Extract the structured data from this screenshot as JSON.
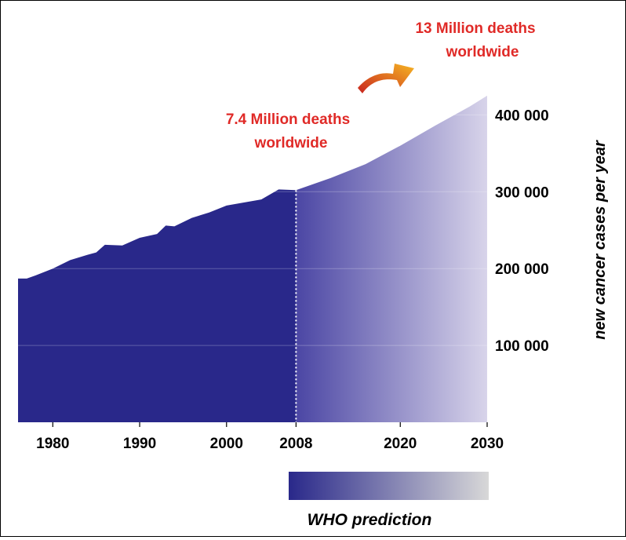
{
  "chart_data": {
    "type": "area",
    "ylabel": "new cancer cases per year",
    "x_ticks": [
      {
        "label": "1980",
        "value": 1980
      },
      {
        "label": "1990",
        "value": 1990
      },
      {
        "label": "2000",
        "value": 2000
      },
      {
        "label": "2008",
        "value": 2008
      },
      {
        "label": "2020",
        "value": 2020
      },
      {
        "label": "2030",
        "value": 2030
      }
    ],
    "y_ticks": [
      {
        "label": "100 000",
        "value": 100000
      },
      {
        "label": "200 000",
        "value": 200000
      },
      {
        "label": "300 000",
        "value": 300000
      },
      {
        "label": "400 000",
        "value": 400000
      }
    ],
    "xlim": [
      1976,
      2030
    ],
    "ylim": [
      0,
      420000
    ],
    "grid": true,
    "historical": {
      "x": [
        1976,
        1977,
        1978,
        1980,
        1982,
        1984,
        1985,
        1986,
        1988,
        1990,
        1992,
        1993,
        1994,
        1996,
        1998,
        2000,
        2002,
        2004,
        2006,
        2008
      ],
      "y": [
        187000,
        187000,
        191000,
        200000,
        211000,
        218000,
        221000,
        231000,
        230000,
        240000,
        245000,
        256000,
        255000,
        266000,
        273000,
        282000,
        286000,
        290000,
        303000,
        302000
      ]
    },
    "prediction": {
      "x": [
        2008,
        2012,
        2016,
        2020,
        2024,
        2028,
        2030
      ],
      "y": [
        302000,
        318000,
        336000,
        360000,
        386000,
        411000,
        425000
      ]
    },
    "prediction_start": 2008,
    "colors": {
      "historical": "#29288a",
      "prediction_start": "#4b46a4",
      "prediction_end": "#d8d4ea",
      "legend_start": "#29288a",
      "legend_end": "#d8d8d8",
      "annotation": "#e02a27",
      "arrow_start": "#c8241e",
      "arrow_end": "#f6b623"
    },
    "annotations": {
      "current": [
        "7.4 Million deaths",
        "worldwide"
      ],
      "future": [
        "13 Million deaths",
        "worldwide"
      ]
    },
    "legend_label": "WHO prediction"
  }
}
